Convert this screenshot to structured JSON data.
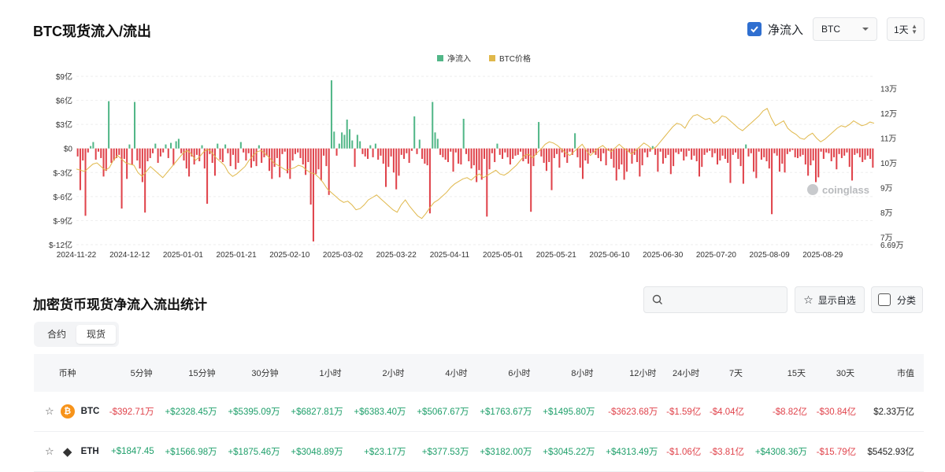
{
  "title": "BTC现货流入/流出",
  "controls": {
    "netflow_label": "净流入",
    "coin_value": "BTC",
    "period_value": "1天"
  },
  "chart_data": {
    "type": "bar",
    "title": "",
    "legend": [
      {
        "name": "净流入",
        "color": "#52b788"
      },
      {
        "name": "BTC价格",
        "color": "#e0b84b"
      }
    ],
    "legend_position": "top-center",
    "y_left": {
      "ticks": [
        "$9亿",
        "$6亿",
        "$3亿",
        "$0",
        "$-3亿",
        "$-6亿",
        "$-9亿",
        "$-12亿"
      ],
      "range": [
        -12,
        9
      ],
      "unit": "亿"
    },
    "y_right": {
      "ticks": [
        "13万",
        "12万",
        "11万",
        "10万",
        "9万",
        "8万",
        "7万"
      ],
      "min_label": "6.69万",
      "range": [
        6.69,
        13.5
      ],
      "unit": "万"
    },
    "x_labels": [
      "2024-11-22",
      "2024-12-12",
      "2025-01-01",
      "2025-01-21",
      "2025-02-10",
      "2025-03-02",
      "2025-03-22",
      "2025-04-11",
      "2025-05-01",
      "2025-05-21",
      "2025-06-10",
      "2025-06-30",
      "2025-07-20",
      "2025-08-09",
      "2025-08-29"
    ],
    "watermark": "coinglass",
    "series": [
      {
        "name": "净流入",
        "unit": "亿",
        "values": [
          -1.0,
          -5.2,
          -1.5,
          -8.4,
          -0.5,
          0.3,
          0.8,
          -1.4,
          -0.4,
          -1.2,
          -3.5,
          -2.8,
          5.9,
          -1.8,
          -1.5,
          -1.2,
          -0.8,
          -7.5,
          -1.3,
          -3.8,
          0.5,
          -2.0,
          5.8,
          -1.5,
          -2.5,
          -4.2,
          -8.0,
          -1.6,
          -1.2,
          -0.6,
          0.6,
          -1.8,
          -1.0,
          -0.5,
          0.5,
          -1.2,
          0.7,
          -2.1,
          0.9,
          1.2,
          -0.6,
          -1.5,
          -2.5,
          -3.5,
          -1.0,
          -2.0,
          -0.8,
          -1.6,
          0.4,
          -2.5,
          -6.9,
          -0.7,
          -1.8,
          -3.4,
          0.6,
          -1.4,
          -1.7,
          0.5,
          -0.6,
          -2.2,
          -0.8,
          -2.6,
          -1.8,
          0.8,
          -0.5,
          -1.5,
          -0.6,
          -2.4,
          -1.6,
          -2.2,
          0.4,
          -1.8,
          -1.1,
          -0.9,
          -2.8,
          -3.8,
          -2.3,
          -1.2,
          -3.6,
          -0.7,
          -0.4,
          -3.1,
          -3.8,
          -1.5,
          -0.7,
          -0.5,
          -1.2,
          -2.0,
          -3.3,
          -1.7,
          -7.0,
          -11.6,
          -3.2,
          -2.6,
          -4.0,
          -0.9,
          -2.2,
          -5.8,
          8.5,
          2.1,
          -0.9,
          0.6,
          2.0,
          1.7,
          3.6,
          2.4,
          1.0,
          -2.3,
          1.7,
          0.9,
          -0.7,
          -1.0,
          -1.3,
          0.4,
          -1.1,
          0.6,
          -1.4,
          -0.9,
          -1.9,
          -4.8,
          -2.3,
          -1.0,
          -3.0,
          -5.1,
          -3.4,
          -0.8,
          -1.3,
          -0.6,
          -1.8,
          -0.3,
          4.0,
          -0.7,
          1.1,
          -1.3,
          -1.9,
          -2.1,
          -8.1,
          5.8,
          2.0,
          1.2,
          -0.8,
          -1.1,
          -1.4,
          -1.7,
          -0.4,
          -2.9,
          -0.5,
          -1.9,
          -2.0,
          3.7,
          -0.7,
          -1.6,
          -2.5,
          -2.1,
          -4.2,
          -2.7,
          -3.9,
          -1.3,
          -8.5,
          -2.6,
          -0.6,
          -1.7,
          0.6,
          -0.8,
          -1.3,
          -0.5,
          -1.1,
          -2.0,
          -1.3,
          -0.9,
          -0.8,
          -0.4,
          -1.6,
          -1.3,
          -1.9,
          -7.9,
          -2.2,
          -0.8,
          3.3,
          -1.0,
          -1.8,
          -2.8,
          -1.7,
          -5.2,
          -1.2,
          -0.7,
          -2.4,
          -0.5,
          -1.1,
          -1.8,
          -0.4,
          -0.8,
          1.9,
          -1.1,
          -2.4,
          -3.8,
          -1.5,
          -1.9,
          -0.6,
          -0.5,
          -0.8,
          -1.2,
          -1.6,
          -0.6,
          -2.1,
          -0.3,
          -1.3,
          -2.4,
          -4.0,
          -2.6,
          -2.0,
          -3.9,
          -2.9,
          -0.5,
          -1.9,
          -0.8,
          -1.7,
          -3.5,
          -2.1,
          -0.5,
          -1.1,
          -0.4,
          0.3,
          -0.8,
          -2.9,
          -0.4,
          -1.9,
          -1.2,
          -0.8,
          -3.2,
          -2.2,
          -0.5,
          -0.7,
          -0.4,
          -1.5,
          -1.0,
          -0.3,
          -1.4,
          -0.9,
          -1.6,
          -3.5,
          -2.3,
          -0.8,
          -0.5,
          -0.3,
          -1.1,
          -0.6,
          -2.0,
          -1.5,
          -0.9,
          -1.3,
          -1.8,
          -4.3,
          -0.8,
          -0.5,
          -1.3,
          -2.2,
          -4.4,
          0.5,
          -1.0,
          -0.6,
          -2.9,
          -3.7,
          -0.4,
          -1.4,
          -1.1,
          -1.6,
          -2.5,
          -8.2,
          -0.6,
          -0.9,
          -2.9,
          -1.9,
          -3.0,
          -0.7,
          -0.4,
          -0.2,
          -1.1,
          -1.2,
          -1.0,
          -0.8,
          -2.0,
          -3.4,
          -2.1,
          -1.5,
          -4.2,
          -3.6,
          -0.4,
          -1.3,
          -0.5,
          -0.6,
          -1.6,
          -1.1,
          -2.6,
          -0.7,
          -1.2,
          -0.9,
          -0.5,
          -2.3,
          -4.0,
          -0.8,
          -0.6,
          -1.1,
          -1.7,
          -1.4,
          -0.9,
          -1.3,
          -2.4
        ]
      },
      {
        "name": "BTC价格",
        "unit": "万",
        "values": [
          9.75,
          9.7,
          9.65,
          9.8,
          9.95,
          10.0,
          9.85,
          9.7,
          9.8,
          10.1,
          10.3,
          10.15,
          10.0,
          9.95,
          9.9,
          9.6,
          9.45,
          9.65,
          9.85,
          9.7,
          9.55,
          9.4,
          9.6,
          9.8,
          10.0,
          10.2,
          10.4,
          10.5,
          10.35,
          10.1,
          10.25,
          10.45,
          10.55,
          10.4,
          10.2,
          10.05,
          9.9,
          9.6,
          9.45,
          9.55,
          9.7,
          9.85,
          10.1,
          10.3,
          10.45,
          10.5,
          10.35,
          10.2,
          10.0,
          9.9,
          9.8,
          9.7,
          9.75,
          9.8,
          9.9,
          9.85,
          9.7,
          9.6,
          9.55,
          9.4,
          9.2,
          8.95,
          8.8,
          8.65,
          8.5,
          8.4,
          8.45,
          8.3,
          8.1,
          8.15,
          8.3,
          8.5,
          8.6,
          8.7,
          8.55,
          8.4,
          8.25,
          8.1,
          8.0,
          8.3,
          8.5,
          8.25,
          8.05,
          7.85,
          7.75,
          7.95,
          8.2,
          8.4,
          8.5,
          8.65,
          8.8,
          9.0,
          9.15,
          9.25,
          9.35,
          9.4,
          9.3,
          9.45,
          9.55,
          9.4,
          9.5,
          9.6,
          9.7,
          9.55,
          9.5,
          9.6,
          9.75,
          9.9,
          10.1,
          10.3,
          10.35,
          10.2,
          10.4,
          10.55,
          10.75,
          10.85,
          10.8,
          10.7,
          10.55,
          10.4,
          10.3,
          10.45,
          10.6,
          10.75,
          10.5,
          10.3,
          10.45,
          10.6,
          10.7,
          10.55,
          10.45,
          10.6,
          10.75,
          10.6,
          10.5,
          10.35,
          10.5,
          10.65,
          10.8,
          10.7,
          10.55,
          10.65,
          10.85,
          11.05,
          11.25,
          11.45,
          11.6,
          11.55,
          11.4,
          11.7,
          11.9,
          11.95,
          11.85,
          11.75,
          11.8,
          11.6,
          11.7,
          11.9,
          11.85,
          11.7,
          11.55,
          11.4,
          11.3,
          11.45,
          11.6,
          11.75,
          11.9,
          12.1,
          12.2,
          11.8,
          11.5,
          11.6,
          11.7,
          11.4,
          11.25,
          11.15,
          11.0,
          10.95,
          11.1,
          11.2,
          11.0,
          10.85,
          10.95,
          11.1,
          11.25,
          11.4,
          11.5,
          11.45,
          11.55,
          11.7,
          11.6,
          11.5,
          11.55,
          11.65,
          11.6
        ]
      }
    ]
  },
  "section_title": "加密货币现货净流入流出统计",
  "search": {
    "placeholder": ""
  },
  "buttons": {
    "favorites": "显示自选",
    "category": "分类"
  },
  "tabs": [
    {
      "label": "合约"
    },
    {
      "label": "现货"
    }
  ],
  "table": {
    "headers": [
      "币种",
      "5分钟",
      "15分钟",
      "30分钟",
      "1小时",
      "2小时",
      "4小时",
      "6小时",
      "8小时",
      "12小时",
      "24小时",
      "7天",
      "15天",
      "30天",
      "市值"
    ],
    "rows": [
      {
        "coin": "BTC",
        "cells": [
          "-$392.71万",
          "+$2328.45万",
          "+$5395.09万",
          "+$6827.81万",
          "+$6383.40万",
          "+$5067.67万",
          "+$1763.67万",
          "+$1495.80万",
          "-$3623.68万",
          "-$1.59亿",
          "-$4.04亿",
          "-$8.82亿",
          "-$30.84亿",
          "$2.33万亿"
        ]
      },
      {
        "coin": "ETH",
        "cells": [
          "+$1847.45",
          "+$1566.98万",
          "+$1875.46万",
          "+$3048.89万",
          "+$23.17万",
          "+$377.53万",
          "+$3182.00万",
          "+$3045.22万",
          "+$4313.49万",
          "-$1.06亿",
          "-$3.81亿",
          "+$4308.36万",
          "-$15.79亿",
          "$5452.93亿"
        ]
      }
    ]
  }
}
